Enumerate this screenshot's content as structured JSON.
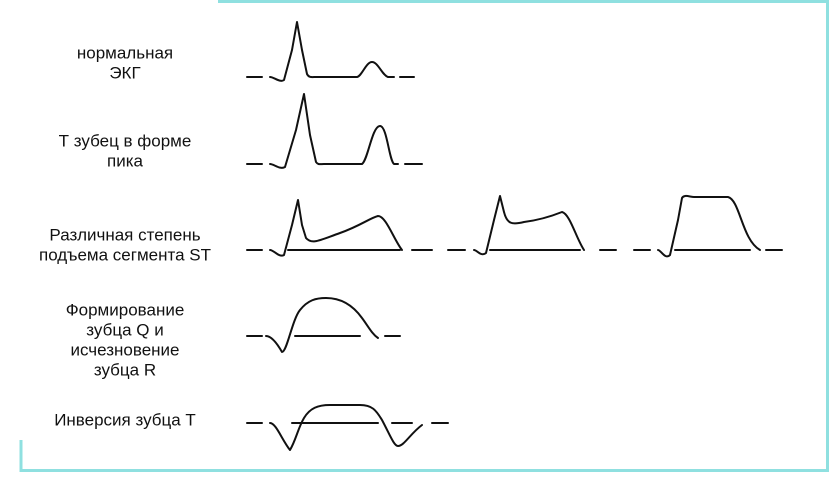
{
  "rows": [
    {
      "label_lines": [
        "нормальная",
        "ЭКГ"
      ]
    },
    {
      "label_lines": [
        "Т зубец в форме",
        "пика"
      ]
    },
    {
      "label_lines": [
        "Различная степень",
        "подъема сегмента ST"
      ]
    },
    {
      "label_lines": [
        "Формирование",
        "зубца Q и",
        "исчезновение",
        "зубца R"
      ]
    },
    {
      "label_lines": [
        "Инверсия зубца Т"
      ]
    }
  ]
}
